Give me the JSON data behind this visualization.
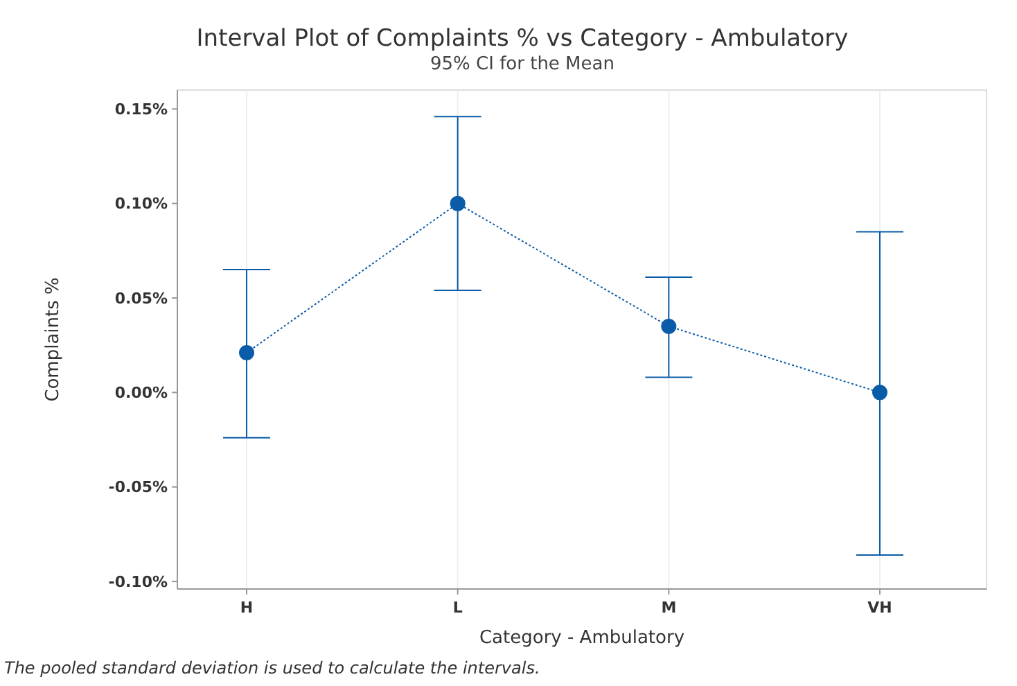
{
  "chart_data": {
    "type": "line",
    "title": "Interval Plot of Complaints % vs Category - Ambulatory",
    "subtitle": "95% CI for the Mean",
    "xlabel": "Category - Ambulatory",
    "ylabel": "Complaints %",
    "annotations": [
      "The pooled standard deviation is used to calculate the intervals."
    ],
    "categories": [
      "H",
      "L",
      "M",
      "VH"
    ],
    "series": [
      {
        "color": "#0b5ca8",
        "values": [
          0.021,
          0.1,
          0.035,
          0.0
        ],
        "errors": [
          [
            -0.024,
            0.065
          ],
          [
            0.054,
            0.146
          ],
          [
            0.008,
            0.061
          ],
          [
            -0.086,
            0.085
          ]
        ]
      }
    ],
    "ylim": [
      -0.104,
      0.16
    ],
    "yticks": [
      {
        "value": -0.1,
        "label": "-0.10%"
      },
      {
        "value": -0.05,
        "label": "-0.05%"
      },
      {
        "value": 0,
        "label": "0.00%"
      },
      {
        "value": 0.05,
        "label": "0.05%"
      },
      {
        "value": 0.1,
        "label": "0.10%"
      },
      {
        "value": 0.15,
        "label": "0.15%"
      }
    ],
    "grid": "x",
    "marker": "circle",
    "line_style": "dotted"
  }
}
